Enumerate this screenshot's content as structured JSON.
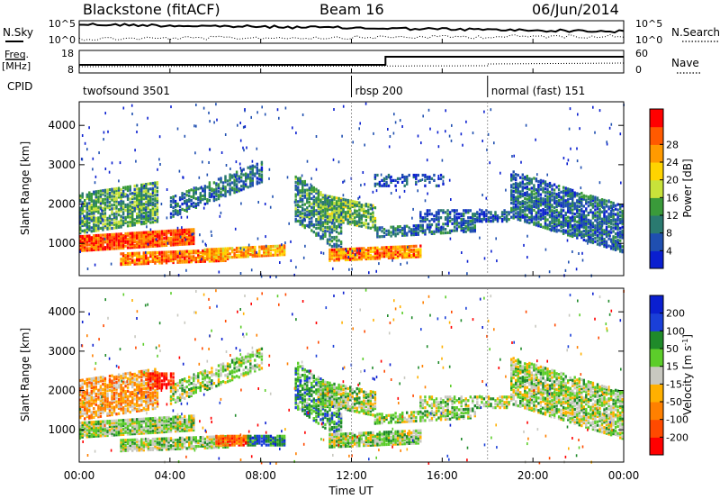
{
  "header": {
    "station": "Blackstone (fitACF)",
    "beam": "Beam 16",
    "date": "06/Jun/2014"
  },
  "summary_panels": {
    "nsky_label": "N.Sky",
    "nsearch_label": "N.Search",
    "freq_label": "Freq.",
    "freq_unit": "[MHz]",
    "nave_label": "Nave",
    "cpid_label": "CPID",
    "nsky_ticks": [
      "10^5",
      "10^0"
    ],
    "nsearch_ticks": [
      "10^5",
      "10^0"
    ],
    "freq_ticks": [
      "18",
      "8"
    ],
    "nave_ticks": [
      "60",
      "0"
    ]
  },
  "cpid_segments": [
    {
      "start_h": 0,
      "label": "twofsound 3501"
    },
    {
      "start_h": 12,
      "label": "rbsp 200"
    },
    {
      "start_h": 18,
      "label": "normal (fast) 151"
    }
  ],
  "chart_data": [
    {
      "type": "heatmap",
      "name": "power",
      "ylabel": "Slant Range [km]",
      "yticks": [
        1000,
        2000,
        3000,
        4000
      ],
      "ylim": [
        180,
        4600
      ],
      "xlim": [
        0,
        24
      ],
      "colorbar_label": "Power [dB]",
      "colorbar_ticks": [
        "4",
        "8",
        "12",
        "16",
        "20",
        "24",
        "28"
      ],
      "colorbar_colors": [
        "#0a1fd0",
        "#1f4fb0",
        "#2a7a70",
        "#3a9a3a",
        "#c8e23a",
        "#ffd400",
        "#ff9a00",
        "#ff5a00",
        "#ff0000"
      ],
      "features": [
        {
          "t0": 0.0,
          "t1": 5.0,
          "r0": 850,
          "r1": 1250,
          "tilt": 180,
          "level": 0.85,
          "density": 0.95
        },
        {
          "t0": 1.8,
          "t1": 6.5,
          "r0": 500,
          "r1": 800,
          "tilt": 100,
          "level": 0.8,
          "density": 0.85
        },
        {
          "t0": 0.0,
          "t1": 3.5,
          "r0": 1300,
          "r1": 2300,
          "tilt": 300,
          "level": 0.35,
          "density": 0.75
        },
        {
          "t0": 4.0,
          "t1": 8.0,
          "r0": 1700,
          "r1": 2200,
          "tilt": 900,
          "level": 0.25,
          "density": 0.55
        },
        {
          "t0": 5.5,
          "t1": 9.0,
          "r0": 650,
          "r1": 900,
          "tilt": 100,
          "level": 0.7,
          "density": 0.8
        },
        {
          "t0": 9.5,
          "t1": 11.5,
          "r0": 1600,
          "r1": 2800,
          "tilt": -800,
          "level": 0.3,
          "density": 0.6
        },
        {
          "t0": 10.5,
          "t1": 13.0,
          "r0": 1700,
          "r1": 2300,
          "tilt": -300,
          "level": 0.4,
          "density": 0.7
        },
        {
          "t0": 11.0,
          "t1": 15.0,
          "r0": 600,
          "r1": 900,
          "tilt": 100,
          "level": 0.75,
          "density": 0.85
        },
        {
          "t0": 13.0,
          "t1": 17.5,
          "r0": 1200,
          "r1": 1450,
          "tilt": 150,
          "level": 0.25,
          "density": 0.6
        },
        {
          "t0": 15.0,
          "t1": 19.0,
          "r0": 1600,
          "r1": 1900,
          "tilt": 0,
          "level": 0.2,
          "density": 0.55
        },
        {
          "t0": 19.0,
          "t1": 24.0,
          "r0": 1700,
          "r1": 2900,
          "tilt": -900,
          "level": 0.22,
          "density": 0.7
        },
        {
          "t0": 13.0,
          "t1": 16.0,
          "r0": 2500,
          "r1": 2800,
          "tilt": 0,
          "level": 0.15,
          "density": 0.35
        }
      ]
    },
    {
      "type": "heatmap",
      "name": "velocity",
      "ylabel": "Slant Range [km]",
      "yticks": [
        1000,
        2000,
        3000,
        4000
      ],
      "ylim": [
        180,
        4600
      ],
      "xlim": [
        0,
        24
      ],
      "xticks": [
        "00:00",
        "04:00",
        "08:00",
        "12:00",
        "16:00",
        "20:00",
        "00:00"
      ],
      "xlabel": "Time UT",
      "colorbar_label": "Velocity [m s",
      "colorbar_label_sup": "-1",
      "colorbar_label_end": "]",
      "colorbar_ticks": [
        "200",
        "100",
        "50",
        "15",
        "-15",
        "-50",
        "-100",
        "-200"
      ],
      "colorbar_colors": [
        "#0a1fd0",
        "#1a3fd8",
        "#1f8a2a",
        "#5ccd2a",
        "#c8c8c0",
        "#ffb000",
        "#ff8000",
        "#ff4a00",
        "#ff0000"
      ],
      "features": [
        {
          "t0": 0.0,
          "t1": 5.0,
          "r0": 850,
          "r1": 1250,
          "tilt": 180,
          "level": 0.45,
          "density": 0.9
        },
        {
          "t0": 1.8,
          "t1": 6.5,
          "r0": 500,
          "r1": 800,
          "tilt": 100,
          "level": 0.45,
          "density": 0.85
        },
        {
          "t0": 0.0,
          "t1": 3.5,
          "r0": 1300,
          "r1": 2300,
          "tilt": 300,
          "level": 0.65,
          "density": 0.7
        },
        {
          "t0": 3.0,
          "t1": 4.2,
          "r0": 2100,
          "r1": 2500,
          "tilt": 0,
          "level": 0.95,
          "density": 0.8
        },
        {
          "t0": 4.0,
          "t1": 8.0,
          "r0": 1700,
          "r1": 2200,
          "tilt": 900,
          "level": 0.45,
          "density": 0.5
        },
        {
          "t0": 6.0,
          "t1": 7.4,
          "r0": 650,
          "r1": 900,
          "tilt": 0,
          "level": 0.8,
          "density": 0.9
        },
        {
          "t0": 7.4,
          "t1": 9.0,
          "r0": 650,
          "r1": 900,
          "tilt": 0,
          "level": 0.25,
          "density": 0.9
        },
        {
          "t0": 9.5,
          "t1": 11.5,
          "r0": 1600,
          "r1": 2800,
          "tilt": -800,
          "level": 0.3,
          "density": 0.55
        },
        {
          "t0": 10.5,
          "t1": 13.0,
          "r0": 1700,
          "r1": 2300,
          "tilt": -300,
          "level": 0.45,
          "density": 0.7
        },
        {
          "t0": 11.0,
          "t1": 15.0,
          "r0": 600,
          "r1": 950,
          "tilt": 100,
          "level": 0.45,
          "density": 0.85
        },
        {
          "t0": 13.0,
          "t1": 17.5,
          "r0": 1200,
          "r1": 1450,
          "tilt": 150,
          "level": 0.45,
          "density": 0.6
        },
        {
          "t0": 15.0,
          "t1": 19.0,
          "r0": 1600,
          "r1": 1900,
          "tilt": 0,
          "level": 0.45,
          "density": 0.55
        },
        {
          "t0": 19.0,
          "t1": 24.0,
          "r0": 1700,
          "r1": 2900,
          "tilt": -900,
          "level": 0.45,
          "density": 0.7
        }
      ]
    }
  ]
}
